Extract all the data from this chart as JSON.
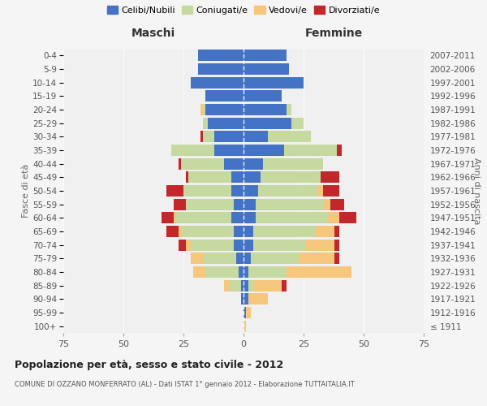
{
  "age_groups": [
    "100+",
    "95-99",
    "90-94",
    "85-89",
    "80-84",
    "75-79",
    "70-74",
    "65-69",
    "60-64",
    "55-59",
    "50-54",
    "45-49",
    "40-44",
    "35-39",
    "30-34",
    "25-29",
    "20-24",
    "15-19",
    "10-14",
    "5-9",
    "0-4"
  ],
  "birth_years": [
    "≤ 1911",
    "1912-1916",
    "1917-1921",
    "1922-1926",
    "1927-1931",
    "1932-1936",
    "1937-1941",
    "1942-1946",
    "1947-1951",
    "1952-1956",
    "1957-1961",
    "1962-1966",
    "1967-1971",
    "1972-1976",
    "1977-1981",
    "1982-1986",
    "1987-1991",
    "1992-1996",
    "1997-2001",
    "2002-2006",
    "2007-2011"
  ],
  "colors": {
    "celibe": "#4472c4",
    "coniugato": "#c5d9a0",
    "vedovo": "#f5c77c",
    "divorziato": "#c0282c"
  },
  "maschi": {
    "celibe": [
      0,
      0,
      1,
      1,
      2,
      3,
      4,
      4,
      5,
      4,
      5,
      5,
      8,
      12,
      12,
      15,
      16,
      16,
      22,
      19,
      19
    ],
    "coniugato": [
      0,
      0,
      0,
      5,
      14,
      14,
      18,
      22,
      23,
      20,
      20,
      18,
      18,
      18,
      5,
      2,
      1,
      0,
      0,
      0,
      0
    ],
    "vedovo": [
      0,
      0,
      0,
      2,
      5,
      5,
      2,
      1,
      1,
      0,
      0,
      0,
      0,
      0,
      0,
      0,
      1,
      0,
      0,
      0,
      0
    ],
    "divorziato": [
      0,
      0,
      0,
      0,
      0,
      0,
      3,
      5,
      5,
      5,
      7,
      1,
      1,
      0,
      1,
      0,
      0,
      0,
      0,
      0,
      0
    ]
  },
  "femmine": {
    "celibe": [
      0,
      1,
      2,
      2,
      2,
      3,
      4,
      4,
      5,
      5,
      6,
      7,
      8,
      17,
      10,
      20,
      18,
      16,
      25,
      19,
      18
    ],
    "coniugato": [
      0,
      0,
      0,
      2,
      16,
      20,
      22,
      26,
      30,
      28,
      25,
      25,
      25,
      22,
      18,
      5,
      2,
      0,
      0,
      0,
      0
    ],
    "vedovo": [
      1,
      2,
      8,
      12,
      27,
      15,
      12,
      8,
      5,
      3,
      2,
      0,
      0,
      0,
      0,
      0,
      0,
      0,
      0,
      0,
      0
    ],
    "divorziato": [
      0,
      0,
      0,
      2,
      0,
      2,
      2,
      2,
      7,
      6,
      7,
      8,
      0,
      2,
      0,
      0,
      0,
      0,
      0,
      0,
      0
    ]
  },
  "title": "Popolazione per età, sesso e stato civile - 2012",
  "subtitle": "COMUNE DI OZZANO MONFERRATO (AL) - Dati ISTAT 1° gennaio 2012 - Elaborazione TUTTAITALIA.IT",
  "xlabel_left": "Maschi",
  "xlabel_right": "Femmine",
  "ylabel_left": "Fasce di età",
  "ylabel_right": "Anni di nascita",
  "xlim": 75,
  "legend_labels": [
    "Celibi/Nubili",
    "Coniugati/e",
    "Vedovi/e",
    "Divorziati/e"
  ],
  "background_color": "#f5f5f5",
  "plot_bg": "#f0f0f0"
}
